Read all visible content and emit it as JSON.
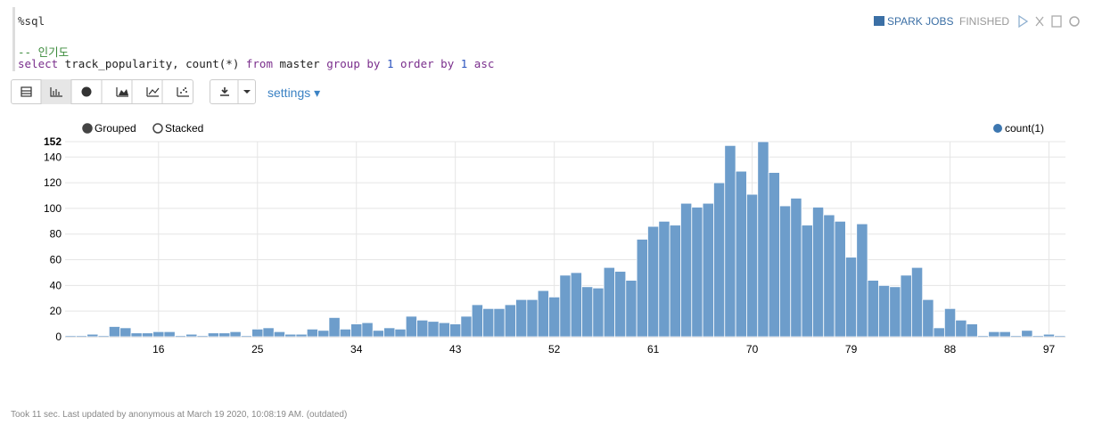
{
  "editor": {
    "lines": [
      [
        {
          "text": "%sql",
          "color": "#333333"
        }
      ],
      [
        {
          "text": "-- 인기도",
          "color": "#3a8a3a"
        }
      ],
      [
        {
          "text": "select",
          "color": "#7a2e8c"
        },
        {
          "text": " track_popularity, count(*)",
          "color": "#222222"
        },
        {
          "text": " from",
          "color": "#7a2e8c"
        },
        {
          "text": " master",
          "color": "#222222"
        },
        {
          "text": " group by",
          "color": "#7a2e8c"
        },
        {
          "text": " 1",
          "color": "#2a52be"
        },
        {
          "text": " order by",
          "color": "#7a2e8c"
        },
        {
          "text": " 1",
          "color": "#2a52be"
        },
        {
          "text": " asc",
          "color": "#7a2e8c"
        }
      ]
    ]
  },
  "status": {
    "jobs": "SPARK JOBS",
    "state": "FINISHED"
  },
  "toolbar": {
    "settings": "settings"
  },
  "chart_data": {
    "type": "bar",
    "modes": [
      "Grouped",
      "Stacked"
    ],
    "x": [
      8,
      9,
      10,
      11,
      12,
      13,
      14,
      15,
      16,
      17,
      18,
      19,
      20,
      21,
      22,
      23,
      24,
      25,
      26,
      27,
      28,
      29,
      30,
      31,
      32,
      33,
      34,
      35,
      36,
      37,
      38,
      39,
      40,
      41,
      42,
      43,
      44,
      45,
      46,
      47,
      48,
      49,
      50,
      51,
      52,
      53,
      54,
      55,
      56,
      57,
      58,
      59,
      60,
      61,
      62,
      63,
      64,
      65,
      66,
      67,
      68,
      69,
      70,
      71,
      72,
      73,
      74,
      75,
      76,
      77,
      78,
      79,
      80,
      81,
      82,
      83,
      84,
      85,
      86,
      87,
      88,
      89,
      90,
      91,
      92,
      93,
      94,
      95,
      96,
      97,
      98
    ],
    "series": [
      {
        "name": "count(1)",
        "color": "#6d9dcb",
        "values": [
          1,
          1,
          2,
          1,
          8,
          7,
          3,
          3,
          4,
          4,
          1,
          2,
          1,
          3,
          3,
          4,
          1,
          6,
          7,
          4,
          2,
          2,
          6,
          5,
          15,
          6,
          10,
          11,
          5,
          7,
          6,
          16,
          13,
          12,
          11,
          10,
          16,
          25,
          22,
          22,
          25,
          29,
          29,
          36,
          31,
          48,
          50,
          39,
          38,
          54,
          51,
          44,
          76,
          86,
          90,
          87,
          104,
          101,
          104,
          120,
          149,
          129,
          111,
          152,
          128,
          102,
          108,
          87,
          101,
          95,
          90,
          62,
          88,
          44,
          40,
          39,
          48,
          54,
          29,
          7,
          22,
          13,
          10,
          1,
          4,
          4,
          1,
          5,
          1,
          2,
          1
        ]
      }
    ],
    "xlim": [
      7.5,
      98.5
    ],
    "xticks": [
      16,
      25,
      34,
      43,
      52,
      61,
      70,
      79,
      88,
      97
    ],
    "ylim": [
      0,
      152
    ],
    "yticks": [
      0,
      20,
      40,
      60,
      80,
      100,
      120,
      140,
      152
    ],
    "grid": true,
    "legend": "top-right"
  },
  "footer": "Took 11 sec. Last updated by anonymous at March 19 2020, 10:08:19 AM. (outdated)"
}
